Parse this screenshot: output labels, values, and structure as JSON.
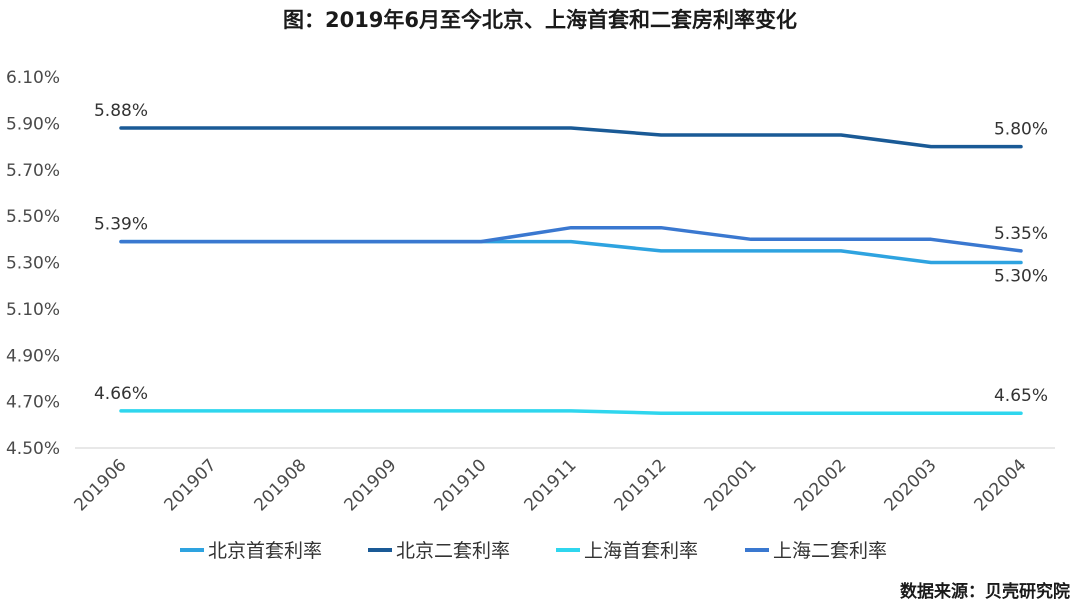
{
  "chart_data": {
    "type": "line",
    "title": "图：2019年6月至今北京、上海首套和二套房利率变化",
    "categories": [
      "201906",
      "201907",
      "201908",
      "201909",
      "201910",
      "201911",
      "201912",
      "202001",
      "202002",
      "202003",
      "202004"
    ],
    "series": [
      {
        "name": "北京首套利率",
        "color": "#2ea3e0",
        "values": [
          5.39,
          5.39,
          5.39,
          5.39,
          5.39,
          5.39,
          5.35,
          5.35,
          5.35,
          5.3,
          5.3
        ]
      },
      {
        "name": "北京二套利率",
        "color": "#1a5a96",
        "values": [
          5.88,
          5.88,
          5.88,
          5.88,
          5.88,
          5.88,
          5.85,
          5.85,
          5.85,
          5.8,
          5.8
        ]
      },
      {
        "name": "上海首套利率",
        "color": "#2fd6ee",
        "values": [
          4.66,
          4.66,
          4.66,
          4.66,
          4.66,
          4.66,
          4.65,
          4.65,
          4.65,
          4.65,
          4.65
        ]
      },
      {
        "name": "上海二套利率",
        "color": "#3a78d0",
        "values": [
          5.39,
          5.39,
          5.39,
          5.39,
          5.39,
          5.45,
          5.45,
          5.4,
          5.4,
          5.4,
          5.35
        ]
      }
    ],
    "y_ticks": [
      "4.50%",
      "4.70%",
      "4.90%",
      "5.10%",
      "5.30%",
      "5.50%",
      "5.70%",
      "5.90%",
      "6.10%"
    ],
    "ylim": [
      4.5,
      6.1
    ],
    "grid": false,
    "legend_position": "bottom",
    "annotations": [
      {
        "text": "5.88%",
        "series": 1,
        "index": 0
      },
      {
        "text": "5.80%",
        "series": 1,
        "index": 10
      },
      {
        "text": "5.39%",
        "series": 3,
        "index": 0
      },
      {
        "text": "5.35%",
        "series": 3,
        "index": 10
      },
      {
        "text": "5.30%",
        "series": 0,
        "index": 10
      },
      {
        "text": "4.66%",
        "series": 2,
        "index": 0
      },
      {
        "text": "4.65%",
        "series": 2,
        "index": 10
      }
    ],
    "source": "数据来源：贝壳研究院"
  }
}
